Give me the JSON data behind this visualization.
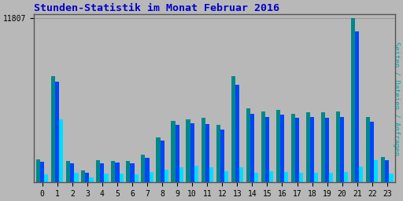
{
  "title": "Stunden-Statistik im Monat Februar 2016",
  "title_color": "#0000cc",
  "ylabel": "Seiten / Dateien / Anfragen",
  "ylabel_color": "#00aaaa",
  "background_color": "#b8b8b8",
  "plot_bg_color": "#b8b8b8",
  "grid_color": "#999999",
  "ymax": 11807,
  "ytick_label": "11807",
  "hours": [
    0,
    1,
    2,
    3,
    4,
    5,
    6,
    7,
    8,
    9,
    10,
    11,
    12,
    13,
    14,
    15,
    16,
    17,
    18,
    19,
    20,
    21,
    22,
    23
  ],
  "seiten": [
    1650,
    7600,
    1500,
    850,
    1600,
    1550,
    1550,
    2000,
    3200,
    4400,
    4500,
    4600,
    4100,
    7600,
    5300,
    5100,
    5200,
    4900,
    5000,
    5000,
    5100,
    11807,
    4700,
    1800
  ],
  "dateien": [
    1450,
    7200,
    1350,
    700,
    1350,
    1400,
    1350,
    1750,
    3000,
    4100,
    4250,
    4200,
    3800,
    7000,
    4900,
    4700,
    4850,
    4600,
    4700,
    4600,
    4700,
    10800,
    4350,
    1600
  ],
  "anfragen": [
    550,
    4500,
    700,
    350,
    600,
    600,
    550,
    750,
    900,
    1100,
    1200,
    1050,
    800,
    1050,
    700,
    800,
    750,
    700,
    700,
    700,
    750,
    1150,
    1600,
    650
  ],
  "color_seiten": "#008888",
  "color_dateien": "#0044ff",
  "color_anfragen": "#00ddff",
  "bar_width": 0.27
}
